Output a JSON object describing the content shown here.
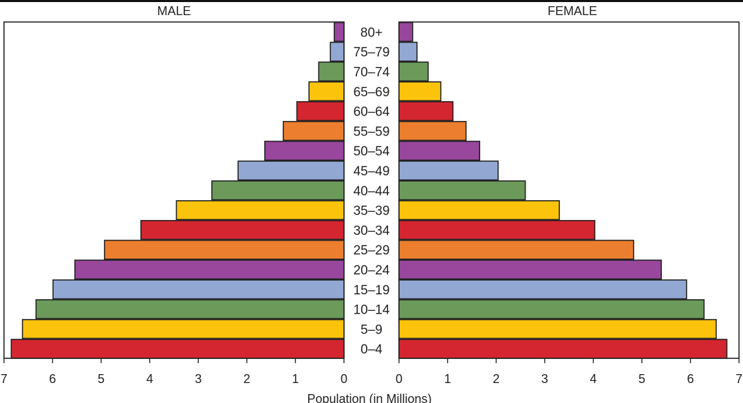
{
  "chart_data": {
    "type": "bar",
    "subtype": "population-pyramid",
    "xlabel": "Population (in Millions)",
    "xlim": [
      0,
      7
    ],
    "ticks": [
      0,
      1,
      2,
      3,
      4,
      5,
      6,
      7
    ],
    "categories": [
      "80+",
      "75–79",
      "70–74",
      "65–69",
      "60–64",
      "55–59",
      "50–54",
      "45–49",
      "40–44",
      "35–39",
      "30–34",
      "25–29",
      "20–24",
      "15–19",
      "10–14",
      "5–9",
      "0–4"
    ],
    "series": [
      {
        "name": "MALE",
        "values": [
          0.2,
          0.28,
          0.52,
          0.72,
          0.97,
          1.25,
          1.63,
          2.18,
          2.72,
          3.45,
          4.18,
          4.93,
          5.54,
          5.99,
          6.34,
          6.62,
          6.85
        ]
      },
      {
        "name": "FEMALE",
        "values": [
          0.28,
          0.37,
          0.6,
          0.86,
          1.11,
          1.38,
          1.66,
          2.04,
          2.6,
          3.3,
          4.03,
          4.83,
          5.4,
          5.92,
          6.28,
          6.53,
          6.75
        ]
      }
    ],
    "colors": [
      "#d42630",
      "#fcc30d",
      "#6b9a5a",
      "#92a8d3",
      "#98479c",
      "#ec7f2f"
    ]
  }
}
